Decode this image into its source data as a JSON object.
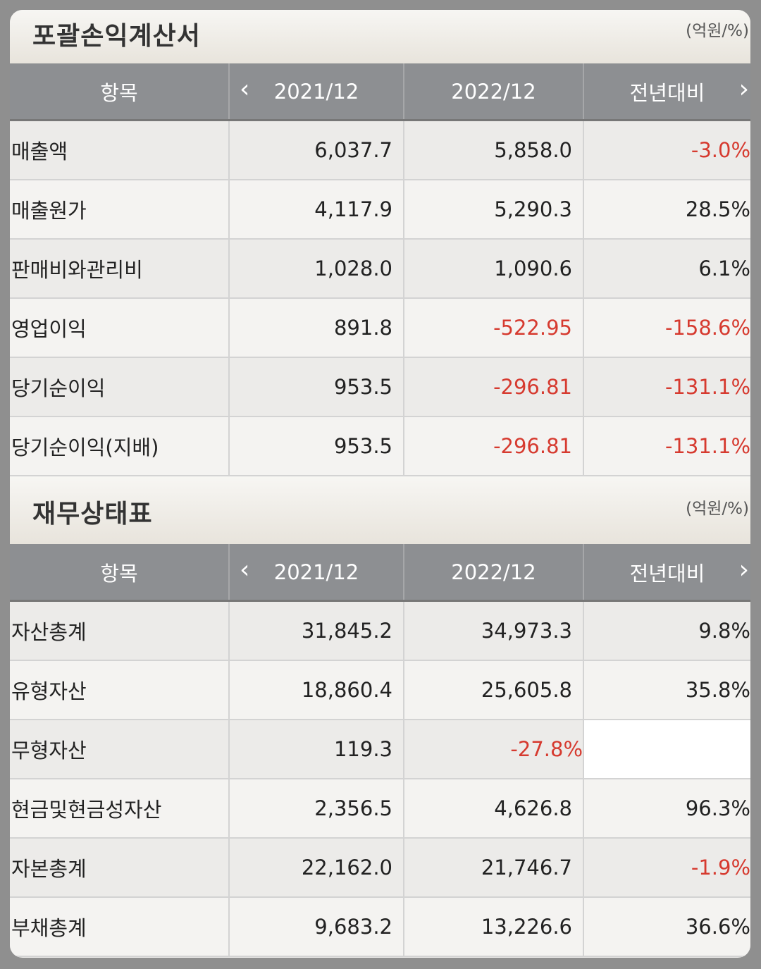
{
  "income": {
    "title": "포괄손익계산서",
    "unit": "(억원/%)",
    "headers": {
      "item": "항목",
      "y1": "2021/12",
      "y2": "2022/12",
      "yoy": "전년대비"
    },
    "rows": [
      {
        "label": "매출액",
        "y1": "6,037.7",
        "y2": "5,858.0",
        "yoy": "-3.0%"
      },
      {
        "label": "매출원가",
        "y1": "4,117.9",
        "y2": "5,290.3",
        "yoy": "28.5%"
      },
      {
        "label": "판매비와관리비",
        "y1": "1,028.0",
        "y2": "1,090.6",
        "yoy": "6.1%"
      },
      {
        "label": "영업이익",
        "y1": "891.8",
        "y2": "-522.95",
        "yoy": "-158.6%"
      },
      {
        "label": "당기순이익",
        "y1": "953.5",
        "y2": "-296.81",
        "yoy": "-131.1%"
      },
      {
        "label": "당기순이익(지배)",
        "y1": "953.5",
        "y2": "-296.81",
        "yoy": "-131.1%"
      }
    ]
  },
  "balance": {
    "title": "재무상태표",
    "unit": "(억원/%)",
    "headers": {
      "item": "항목",
      "y1": "2021/12",
      "y2": "2022/12",
      "yoy": "전년대비"
    },
    "rows": [
      {
        "label": "자산총계",
        "y1": "31,845.2",
        "y2": "34,973.3",
        "yoy": "9.8%"
      },
      {
        "label": "유형자산",
        "y1": "18,860.4",
        "y2": "25,605.8",
        "yoy": "35.8%"
      },
      {
        "label": "무형자산",
        "y1": "119.3",
        "y2": "-27.8%",
        "yoy": ""
      },
      {
        "label": "현금및현금성자산",
        "y1": "2,356.5",
        "y2": "4,626.8",
        "yoy": "96.3%"
      },
      {
        "label": "자본총계",
        "y1": "22,162.0",
        "y2": "21,746.7",
        "yoy": "-1.9%"
      },
      {
        "label": "부채총계",
        "y1": "9,683.2",
        "y2": "13,226.6",
        "yoy": "36.6%"
      }
    ]
  },
  "icons": {
    "prev": "chevron-left-icon",
    "next": "chevron-right-icon"
  },
  "colors": {
    "negative": "#d63a2f",
    "header_bg": "#8d8f92"
  }
}
